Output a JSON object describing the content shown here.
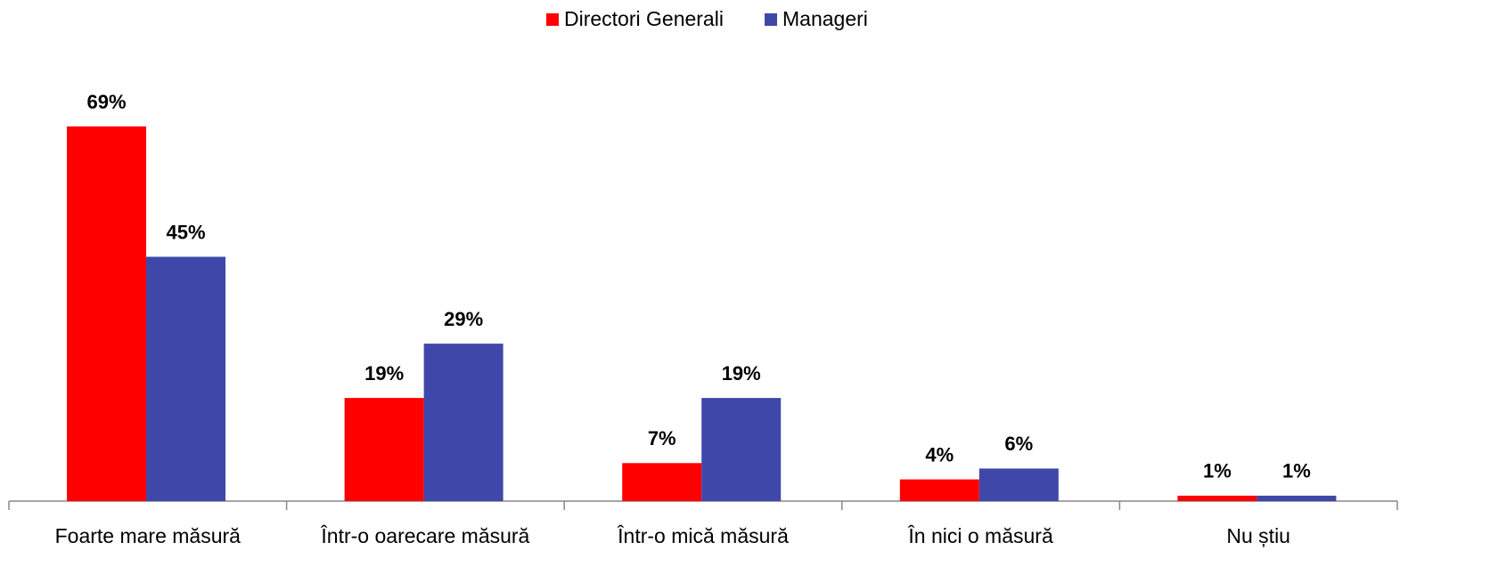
{
  "chart_data": {
    "type": "bar",
    "categories": [
      "Foarte mare măsură",
      "Într-o oarecare măsură",
      "Într-o mică măsură",
      "În nici o măsură",
      "Nu știu"
    ],
    "series": [
      {
        "name": "Directori Generali",
        "color": "#ff0000",
        "values": [
          69,
          19,
          7,
          4,
          1
        ],
        "value_labels": [
          "69%",
          "19%",
          "7%",
          "4%",
          "1%"
        ]
      },
      {
        "name": "Manageri",
        "color": "#3f48a8",
        "values": [
          45,
          29,
          19,
          6,
          1
        ],
        "value_labels": [
          "45%",
          "29%",
          "19%",
          "6%",
          "1%"
        ]
      }
    ],
    "ylim": [
      0,
      80
    ],
    "legend": "top"
  }
}
